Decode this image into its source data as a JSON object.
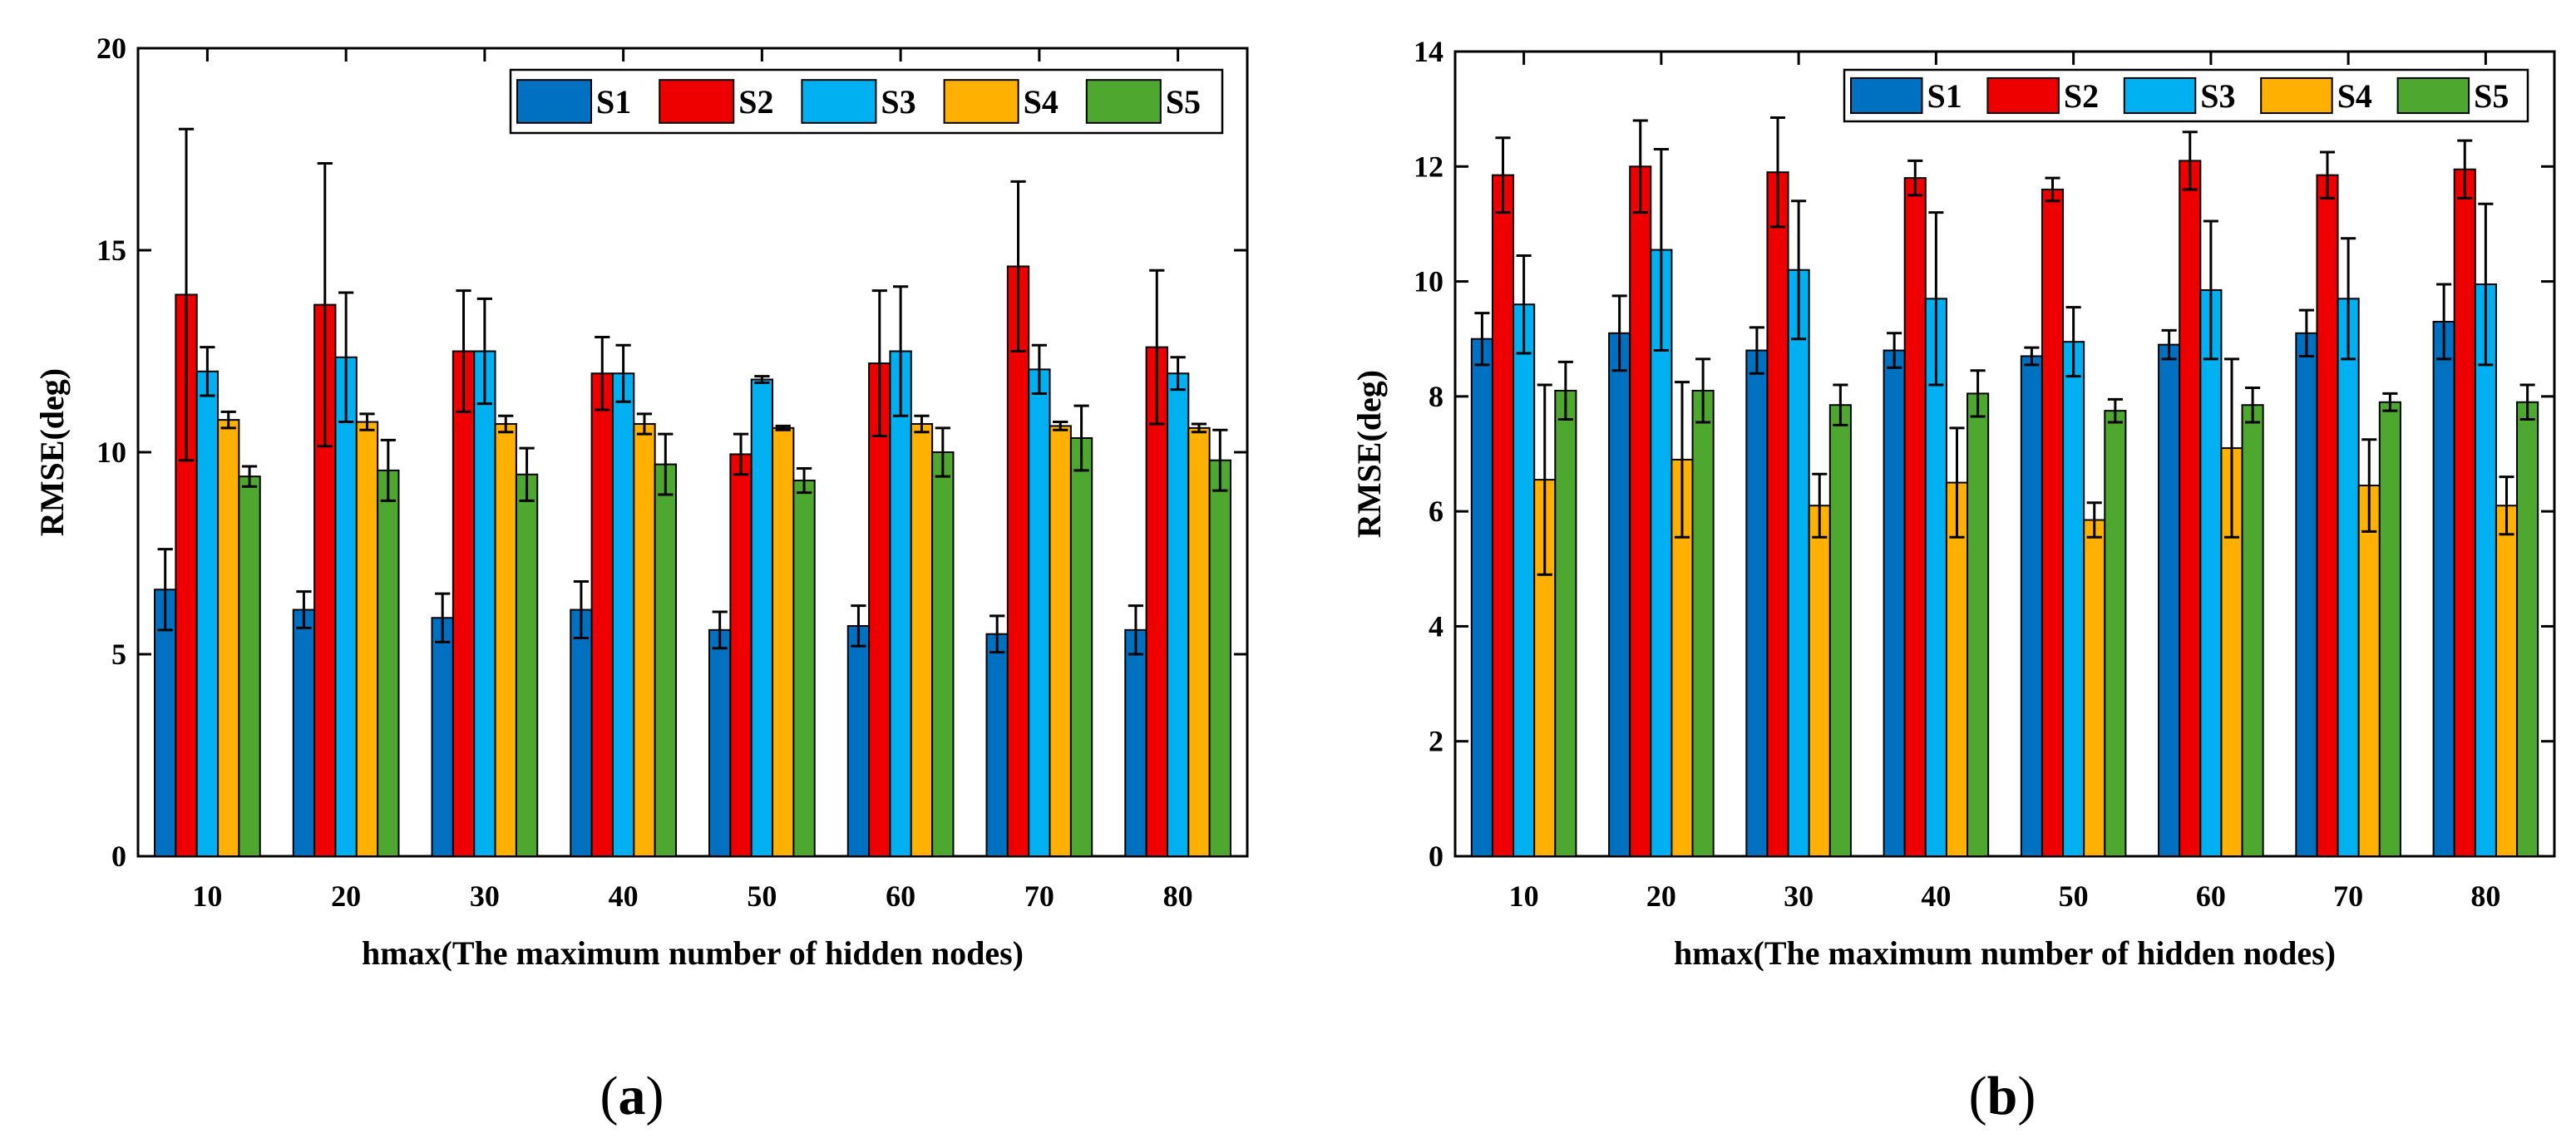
{
  "colors": {
    "S1": "#0070C0",
    "S2": "#EE0000",
    "S3": "#00B0F0",
    "S4": "#FFB000",
    "S5": "#4EA72E"
  },
  "panels": [
    {
      "label_open": "(",
      "label_letter": "a",
      "label_close": ")"
    },
    {
      "label_open": "(",
      "label_letter": "b",
      "label_close": ")"
    }
  ],
  "chart_data": [
    {
      "type": "bar",
      "title": "",
      "xlabel": "hmax(The maximum number of hidden nodes)",
      "ylabel": "RMSE(deg)",
      "categories": [
        "10",
        "20",
        "30",
        "40",
        "50",
        "60",
        "70",
        "80"
      ],
      "ylim": [
        0,
        20
      ],
      "yticks": [
        "0",
        "5",
        "10",
        "15",
        "20"
      ],
      "legend_position": "top-right",
      "series": [
        {
          "name": "S1",
          "values": [
            6.6,
            6.1,
            5.9,
            6.1,
            5.6,
            5.7,
            5.5,
            5.6
          ],
          "errors": [
            1.0,
            0.45,
            0.6,
            0.7,
            0.45,
            0.5,
            0.45,
            0.6
          ]
        },
        {
          "name": "S2",
          "values": [
            13.9,
            13.65,
            12.5,
            11.95,
            9.95,
            12.2,
            14.6,
            12.6
          ],
          "errors": [
            4.1,
            3.5,
            1.5,
            0.9,
            0.5,
            1.8,
            2.1,
            1.9
          ]
        },
        {
          "name": "S3",
          "values": [
            12.0,
            12.35,
            12.5,
            11.95,
            11.8,
            12.5,
            12.05,
            11.95
          ],
          "errors": [
            0.6,
            1.6,
            1.3,
            0.7,
            0.08,
            1.6,
            0.6,
            0.4
          ]
        },
        {
          "name": "S4",
          "values": [
            10.8,
            10.75,
            10.7,
            10.7,
            10.6,
            10.7,
            10.65,
            10.6
          ],
          "errors": [
            0.2,
            0.2,
            0.2,
            0.25,
            0.05,
            0.2,
            0.1,
            0.1
          ]
        },
        {
          "name": "S5",
          "values": [
            9.4,
            9.55,
            9.45,
            9.7,
            9.3,
            10.0,
            10.35,
            9.8
          ],
          "errors": [
            0.25,
            0.75,
            0.65,
            0.75,
            0.3,
            0.6,
            0.8,
            0.75
          ]
        }
      ]
    },
    {
      "type": "bar",
      "title": "",
      "xlabel": "hmax(The maximum number of hidden nodes)",
      "ylabel": "RMSE(deg)",
      "categories": [
        "10",
        "20",
        "30",
        "40",
        "50",
        "60",
        "70",
        "80"
      ],
      "ylim": [
        0,
        14
      ],
      "yticks": [
        "0",
        "2",
        "4",
        "6",
        "8",
        "10",
        "12",
        "14"
      ],
      "legend_position": "top-right",
      "series": [
        {
          "name": "S1",
          "values": [
            9.0,
            9.1,
            8.8,
            8.8,
            8.7,
            8.9,
            9.1,
            9.3
          ],
          "errors": [
            0.45,
            0.65,
            0.4,
            0.3,
            0.15,
            0.25,
            0.4,
            0.65
          ]
        },
        {
          "name": "S2",
          "values": [
            11.85,
            12.0,
            11.9,
            11.8,
            11.6,
            12.1,
            11.85,
            11.95
          ],
          "errors": [
            0.65,
            0.8,
            0.95,
            0.3,
            0.2,
            0.5,
            0.4,
            0.5
          ]
        },
        {
          "name": "S3",
          "values": [
            9.6,
            10.55,
            10.2,
            9.7,
            8.95,
            9.85,
            9.7,
            9.95
          ],
          "errors": [
            0.85,
            1.75,
            1.2,
            1.5,
            0.6,
            1.2,
            1.05,
            1.4
          ]
        },
        {
          "name": "S4",
          "values": [
            6.55,
            6.9,
            6.1,
            6.5,
            5.85,
            7.1,
            6.45,
            6.1
          ],
          "errors": [
            1.65,
            1.35,
            0.55,
            0.95,
            0.3,
            1.55,
            0.8,
            0.5
          ]
        },
        {
          "name": "S5",
          "values": [
            8.1,
            8.1,
            7.85,
            8.05,
            7.75,
            7.85,
            7.9,
            7.9
          ],
          "errors": [
            0.5,
            0.55,
            0.35,
            0.4,
            0.2,
            0.3,
            0.15,
            0.3
          ]
        }
      ]
    }
  ]
}
